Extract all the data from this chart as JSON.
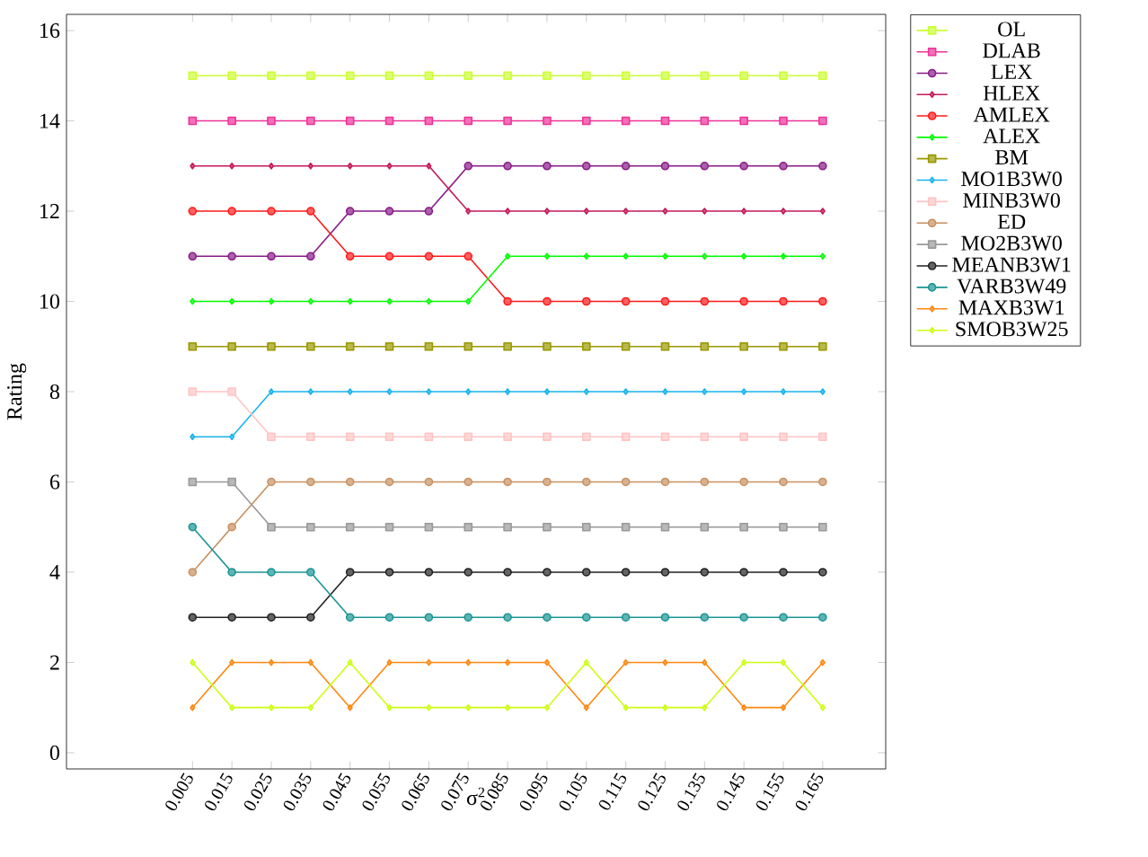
{
  "chart_data": {
    "type": "line",
    "xlabel": "σ$^{2}$",
    "ylabel": "Rating",
    "x": [
      0.005,
      0.015,
      0.025,
      0.035,
      0.045,
      0.055,
      0.065,
      0.075,
      0.085,
      0.095,
      0.105,
      0.115,
      0.125,
      0.135,
      0.145,
      0.155,
      0.165
    ],
    "xlim": [
      -0.027,
      0.181
    ],
    "xticks": [
      0.005,
      0.015,
      0.025,
      0.035,
      0.045,
      0.055,
      0.065,
      0.075,
      0.085,
      0.095,
      0.105,
      0.115,
      0.125,
      0.135,
      0.145,
      0.155,
      0.165
    ],
    "ylim": [
      -0.36,
      16.36
    ],
    "yticks": [
      0,
      2,
      4,
      6,
      8,
      10,
      12,
      14,
      16
    ],
    "legend": "right",
    "grid": false,
    "line_style": "solid",
    "series": [
      {
        "name": "OL",
        "color": "#ccff33",
        "marker": "square",
        "values": [
          15,
          15,
          15,
          15,
          15,
          15,
          15,
          15,
          15,
          15,
          15,
          15,
          15,
          15,
          15,
          15,
          15
        ]
      },
      {
        "name": "DLAB",
        "color": "#ee3399",
        "marker": "square",
        "values": [
          14,
          14,
          14,
          14,
          14,
          14,
          14,
          14,
          14,
          14,
          14,
          14,
          14,
          14,
          14,
          14,
          14
        ]
      },
      {
        "name": "LEX",
        "color": "#881a88",
        "marker": "circle",
        "values": [
          11,
          11,
          11,
          11,
          12,
          12,
          12,
          13,
          13,
          13,
          13,
          13,
          13,
          13,
          13,
          13,
          13
        ]
      },
      {
        "name": "HLEX",
        "color": "#c41a5a",
        "marker": "diamond",
        "values": [
          13,
          13,
          13,
          13,
          13,
          13,
          13,
          12,
          12,
          12,
          12,
          12,
          12,
          12,
          12,
          12,
          12
        ]
      },
      {
        "name": "AMLEX",
        "color": "#ff1a1a",
        "marker": "circle",
        "values": [
          12,
          12,
          12,
          12,
          11,
          11,
          11,
          11,
          10,
          10,
          10,
          10,
          10,
          10,
          10,
          10,
          10
        ]
      },
      {
        "name": "ALEX",
        "color": "#00ff00",
        "marker": "diamond",
        "values": [
          10,
          10,
          10,
          10,
          10,
          10,
          10,
          10,
          11,
          11,
          11,
          11,
          11,
          11,
          11,
          11,
          11
        ]
      },
      {
        "name": "BM",
        "color": "#999900",
        "marker": "square",
        "values": [
          9,
          9,
          9,
          9,
          9,
          9,
          9,
          9,
          9,
          9,
          9,
          9,
          9,
          9,
          9,
          9,
          9
        ]
      },
      {
        "name": "MO1B3W0",
        "color": "#1ab2ee",
        "marker": "diamond",
        "values": [
          7,
          7,
          8,
          8,
          8,
          8,
          8,
          8,
          8,
          8,
          8,
          8,
          8,
          8,
          8,
          8,
          8
        ]
      },
      {
        "name": "MINB3W0",
        "color": "#ffc4c4",
        "marker": "square",
        "values": [
          8,
          8,
          7,
          7,
          7,
          7,
          7,
          7,
          7,
          7,
          7,
          7,
          7,
          7,
          7,
          7,
          7
        ]
      },
      {
        "name": "ED",
        "color": "#c89060",
        "marker": "circle",
        "values": [
          4,
          5,
          6,
          6,
          6,
          6,
          6,
          6,
          6,
          6,
          6,
          6,
          6,
          6,
          6,
          6,
          6
        ]
      },
      {
        "name": "MO2B3W0",
        "color": "#999999",
        "marker": "square",
        "values": [
          6,
          6,
          5,
          5,
          5,
          5,
          5,
          5,
          5,
          5,
          5,
          5,
          5,
          5,
          5,
          5,
          5
        ]
      },
      {
        "name": "MEANB3W1",
        "color": "#222222",
        "marker": "circle",
        "values": [
          3,
          3,
          3,
          3,
          4,
          4,
          4,
          4,
          4,
          4,
          4,
          4,
          4,
          4,
          4,
          4,
          4
        ]
      },
      {
        "name": "VARB3W49",
        "color": "#1a9494",
        "marker": "circle",
        "values": [
          5,
          4,
          4,
          4,
          3,
          3,
          3,
          3,
          3,
          3,
          3,
          3,
          3,
          3,
          3,
          3,
          3
        ]
      },
      {
        "name": "MAXB3W1",
        "color": "#ff8811",
        "marker": "diamond",
        "values": [
          1,
          2,
          2,
          2,
          1,
          2,
          2,
          2,
          2,
          2,
          1,
          2,
          2,
          2,
          1,
          1,
          2
        ]
      },
      {
        "name": "SMOB3W25",
        "color": "#ccff11",
        "marker": "diamond",
        "values": [
          2,
          1,
          1,
          1,
          2,
          1,
          1,
          1,
          1,
          1,
          2,
          1,
          1,
          1,
          2,
          2,
          1
        ]
      }
    ]
  }
}
